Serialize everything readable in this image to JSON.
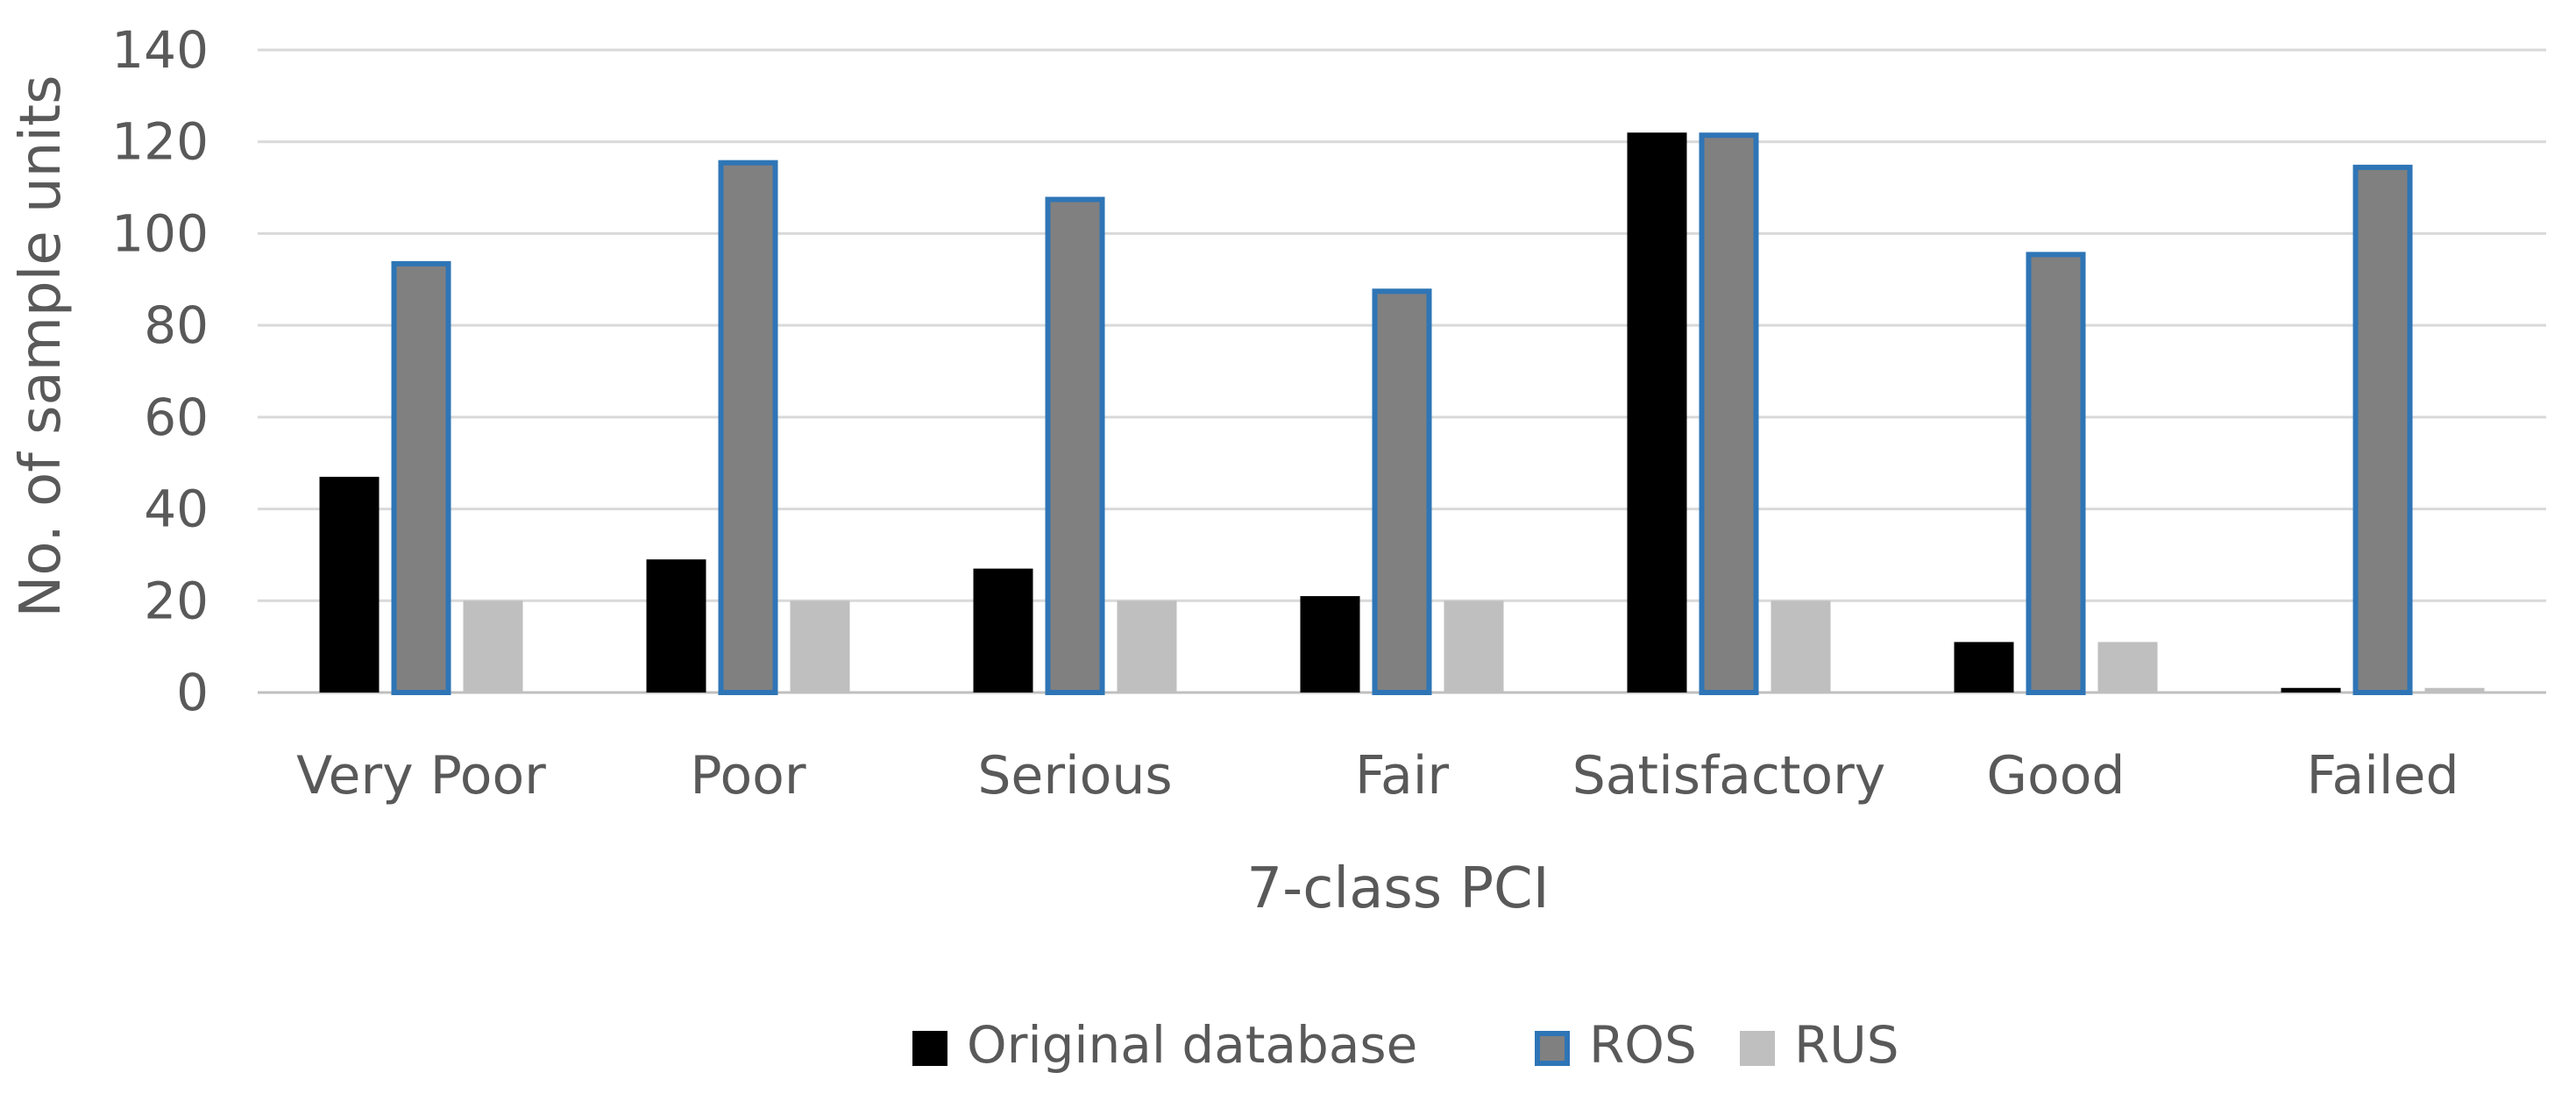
{
  "chart_data": {
    "type": "bar",
    "title": "",
    "xlabel": "7-class PCI",
    "ylabel": "No. of sample units",
    "ylim": [
      0,
      140
    ],
    "yticks": [
      0,
      20,
      40,
      60,
      80,
      100,
      120,
      140
    ],
    "grid": true,
    "legend_position": "bottom",
    "categories": [
      "Very Poor",
      "Poor",
      "Serious",
      "Fair",
      "Satisfactory",
      "Good",
      "Failed"
    ],
    "series": [
      {
        "name": "Original database",
        "values": [
          47,
          29,
          27,
          21,
          122,
          11,
          1
        ],
        "color": "#000000"
      },
      {
        "name": "ROS",
        "values": [
          94,
          116,
          108,
          88,
          122,
          96,
          115
        ],
        "color": "#808080",
        "border": "#2e75b6"
      },
      {
        "name": "RUS",
        "values": [
          20,
          20,
          20,
          20,
          20,
          11,
          1
        ],
        "color": "#bfbfbf"
      }
    ]
  }
}
